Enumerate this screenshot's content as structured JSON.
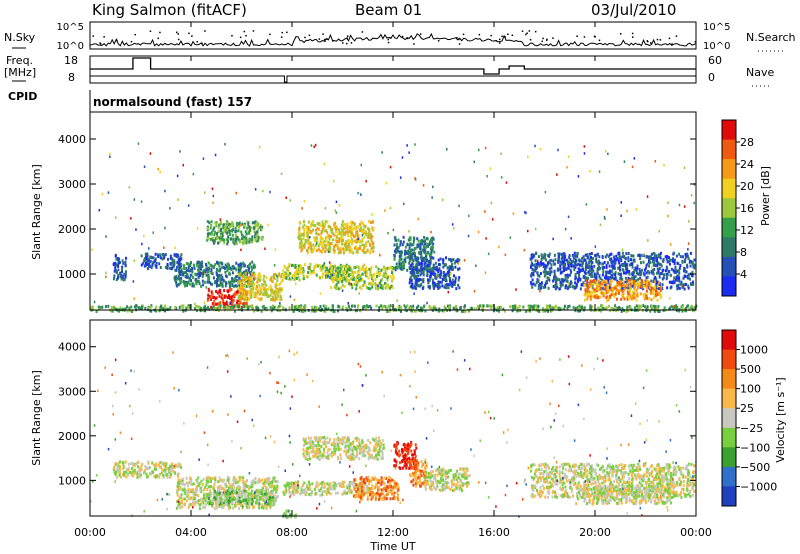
{
  "header": {
    "station": "King Salmon (fitACF)",
    "beam": "Beam 01",
    "date": "03/Jul/2010"
  },
  "strip": {
    "nsky_label": "N.Sky",
    "nsky_ticks": [
      "10^5",
      "10^0"
    ],
    "nsearch_label": "N.Search",
    "nsearch_ticks": [
      "10^5",
      "10^0"
    ],
    "freq_label": "Freq.",
    "freq_unit": "[MHz]",
    "freq_ticks": [
      "18",
      "8"
    ],
    "nave_label": "Nave",
    "nave_ticks": [
      "60",
      "0"
    ],
    "cpid_label": "CPID",
    "cpid_value": "normalsound (fast) 157"
  },
  "colors": {
    "power": [
      "#1a2cf0",
      "#2450b8",
      "#2e7a66",
      "#34a04a",
      "#9cc83c",
      "#f0d020",
      "#f59a16",
      "#f05a10",
      "#e00a0a"
    ],
    "velocity": [
      "#e00a0a",
      "#f04a10",
      "#f58a18",
      "#f8b84a",
      "#c8c8c0",
      "#78d040",
      "#3aa030",
      "#3070c8",
      "#2040c0"
    ]
  },
  "chart_data": [
    {
      "type": "heatmap",
      "name": "power-panel",
      "ylabel": "Slant Range [km]",
      "yticks": [
        1000,
        2000,
        3000,
        4000
      ],
      "ylim": [
        200,
        4600
      ],
      "xlim": [
        0,
        24
      ],
      "colorbar": {
        "label": "Power [dB]",
        "ticks": [
          "28",
          "24",
          "20",
          "16",
          "12",
          "8",
          "4"
        ]
      },
      "echo_regions": [
        {
          "t0": 0.9,
          "t1": 1.4,
          "r0": 900,
          "r1": 1450,
          "level": 1
        },
        {
          "t0": 2.0,
          "t1": 3.6,
          "r0": 1150,
          "r1": 1480,
          "level": 1
        },
        {
          "t0": 3.3,
          "t1": 6.5,
          "r0": 750,
          "r1": 1300,
          "level": 2
        },
        {
          "t0": 4.6,
          "t1": 6.2,
          "r0": 280,
          "r1": 700,
          "level": 8
        },
        {
          "t0": 5.8,
          "t1": 7.6,
          "r0": 450,
          "r1": 1050,
          "level": 5
        },
        {
          "t0": 7.6,
          "t1": 10.2,
          "r0": 900,
          "r1": 1250,
          "level": 4
        },
        {
          "t0": 8.2,
          "t1": 11.2,
          "r0": 1500,
          "r1": 2200,
          "level": 5
        },
        {
          "t0": 4.6,
          "t1": 6.8,
          "r0": 1700,
          "r1": 2200,
          "level": 3
        },
        {
          "t0": 9.5,
          "t1": 12.0,
          "r0": 700,
          "r1": 1200,
          "level": 4
        },
        {
          "t0": 12.0,
          "t1": 13.6,
          "r0": 1100,
          "r1": 1850,
          "level": 2
        },
        {
          "t0": 12.6,
          "t1": 14.6,
          "r0": 700,
          "r1": 1400,
          "level": 1
        },
        {
          "t0": 17.4,
          "t1": 23.9,
          "r0": 700,
          "r1": 1500,
          "level": 1
        },
        {
          "t0": 19.5,
          "t1": 22.6,
          "r0": 450,
          "r1": 900,
          "level": 6
        },
        {
          "t0": 0.0,
          "t1": 24.0,
          "r0": 200,
          "r1": 330,
          "level": 3
        }
      ]
    },
    {
      "type": "heatmap",
      "name": "velocity-panel",
      "ylabel": "Slant Range [km]",
      "xlabel": "Time UT",
      "yticks": [
        1000,
        2000,
        3000,
        4000
      ],
      "ylim": [
        200,
        4600
      ],
      "xlim": [
        0,
        24
      ],
      "xticks": [
        "00:00",
        "04:00",
        "08:00",
        "12:00",
        "16:00",
        "20:00",
        "00:00"
      ],
      "colorbar": {
        "label": "Velocity [m s⁻¹]",
        "ticks": [
          "1000",
          "500",
          "100",
          "25",
          "−25",
          "−100",
          "−500",
          "−1000"
        ]
      },
      "echo_regions": [
        {
          "t0": 0.9,
          "t1": 3.6,
          "r0": 1100,
          "r1": 1450,
          "level": 4
        },
        {
          "t0": 3.4,
          "t1": 7.4,
          "r0": 400,
          "r1": 1100,
          "level": 4
        },
        {
          "t0": 4.6,
          "t1": 7.2,
          "r0": 500,
          "r1": 800,
          "level": 5
        },
        {
          "t0": 7.6,
          "t1": 11.0,
          "r0": 700,
          "r1": 1000,
          "level": 4
        },
        {
          "t0": 8.4,
          "t1": 11.6,
          "r0": 1500,
          "r1": 2000,
          "level": 4
        },
        {
          "t0": 10.4,
          "t1": 12.2,
          "r0": 600,
          "r1": 1100,
          "level": 2
        },
        {
          "t0": 12.0,
          "t1": 12.9,
          "r0": 1300,
          "r1": 1900,
          "level": 0
        },
        {
          "t0": 12.6,
          "t1": 13.3,
          "r0": 900,
          "r1": 1500,
          "level": 2
        },
        {
          "t0": 13.2,
          "t1": 15.0,
          "r0": 800,
          "r1": 1300,
          "level": 4
        },
        {
          "t0": 17.4,
          "t1": 23.9,
          "r0": 650,
          "r1": 1400,
          "level": 4
        },
        {
          "t0": 19.2,
          "t1": 23.0,
          "r0": 500,
          "r1": 900,
          "level": 4
        },
        {
          "t0": 7.6,
          "t1": 8.2,
          "r0": 200,
          "r1": 350,
          "level": 5
        }
      ]
    }
  ]
}
